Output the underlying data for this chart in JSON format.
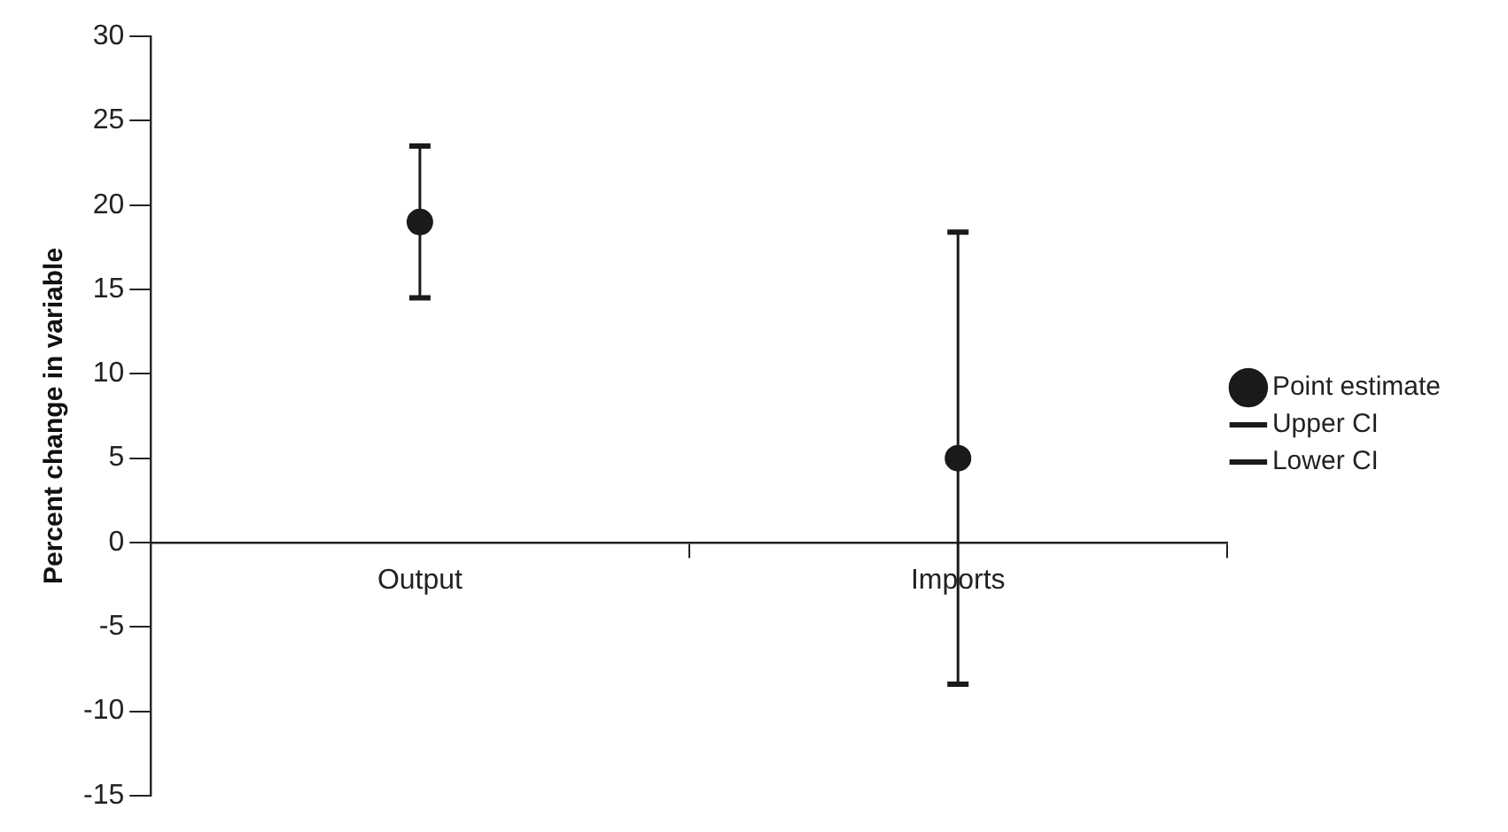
{
  "chart_data": {
    "type": "scatter",
    "ylabel": "Percent change in variable",
    "categories": [
      "Output",
      "Imports"
    ],
    "series": [
      {
        "name": "Point estimate",
        "color": "#1a1a1a",
        "marker": "circle",
        "values": [
          19,
          5
        ],
        "errors": [
          [
            14.5,
            23.5
          ],
          [
            -8.4,
            18.4
          ]
        ]
      },
      {
        "name": "Upper CI",
        "color": "#1a1a1a",
        "marker": "none",
        "values": [
          null,
          null
        ]
      },
      {
        "name": "Lower CI",
        "color": "#1a1a1a",
        "marker": "none",
        "values": [
          null,
          null
        ]
      }
    ],
    "ylim": [
      -15,
      30
    ],
    "yticks": [
      -15,
      -10,
      -5,
      0,
      5,
      10,
      15,
      20,
      25,
      30
    ],
    "grid": false,
    "legend": "right"
  }
}
